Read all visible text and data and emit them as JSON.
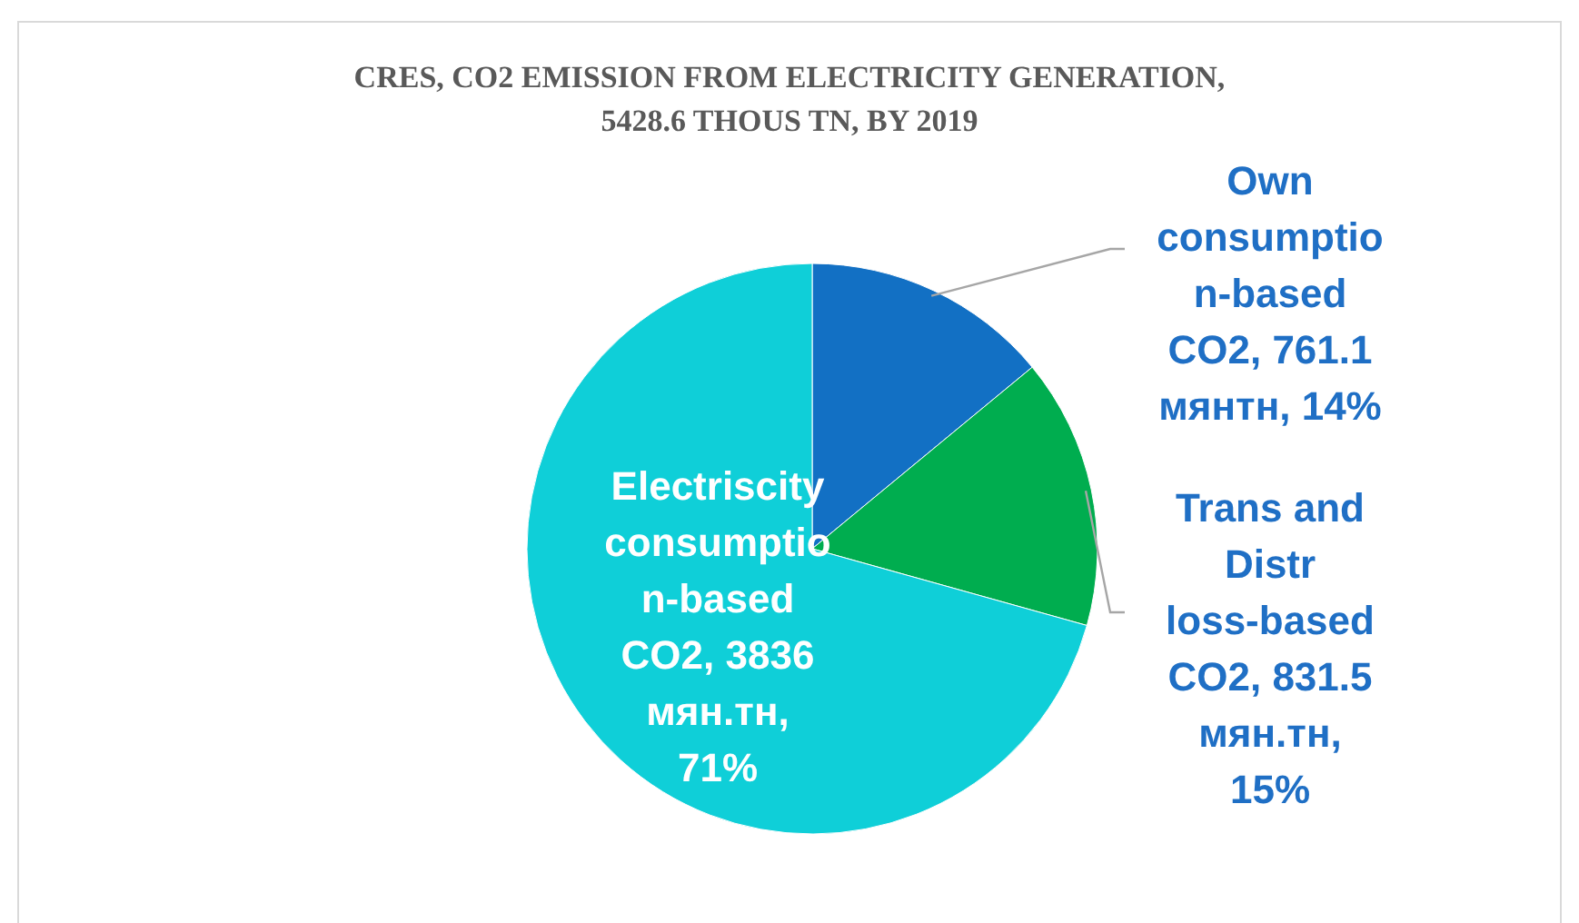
{
  "chart_data": {
    "type": "pie",
    "title": "CRES, CO2 EMISSION FROM ELECTRICITY GENERATION, 5428.6 THOUS TN, BY 2019",
    "categories": [
      "Own consumption-based CO2",
      "Trans and Distr loss-based CO2",
      "Electriscity consumption-based CO2"
    ],
    "values": [
      761.1,
      831.5,
      3836
    ],
    "value_labels": [
      "761.1 мянтн, 14%",
      "831.5 мян.тн, 15%",
      "3836 мян.тн, 71%"
    ],
    "colors": [
      "#1270c4",
      "#00ad4f",
      "#0fcfd8"
    ]
  }
}
